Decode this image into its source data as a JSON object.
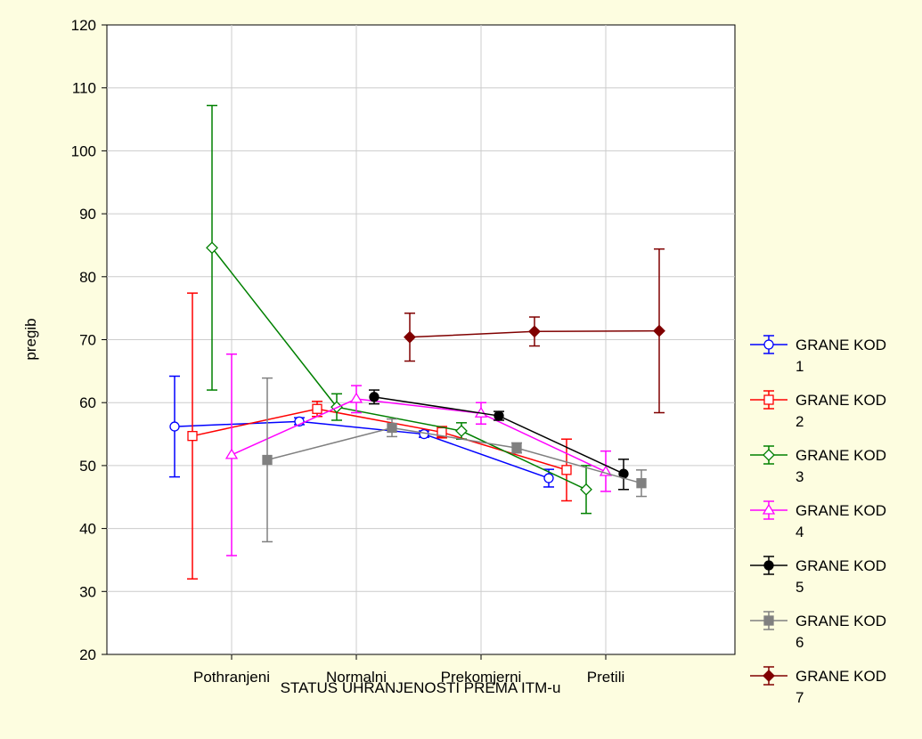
{
  "chart_data": {
    "type": "line",
    "title": "",
    "xlabel": "STATUS UHRANJENOSTI PREMA ITM-u",
    "ylabel": "pregib",
    "ylim": [
      20,
      120
    ],
    "yticks": [
      20,
      30,
      40,
      50,
      60,
      70,
      80,
      90,
      100,
      110,
      120
    ],
    "categories": [
      "Pothranjeni",
      "Normalni",
      "Prekomjerni",
      "Pretili"
    ],
    "grid": true,
    "legend_position": "right",
    "series": [
      {
        "name_line1": "GRANE KOD",
        "name_line2": "1",
        "color": "#0000ff",
        "marker": "circle-open",
        "values": [
          56.2,
          57.0,
          55.0,
          48.0
        ],
        "lower": [
          48.2,
          56.5,
          54.5,
          46.6
        ],
        "upper": [
          64.2,
          57.6,
          55.5,
          49.4
        ]
      },
      {
        "name_line1": "GRANE KOD",
        "name_line2": "2",
        "color": "#ff0000",
        "marker": "square-open",
        "values": [
          54.7,
          59.0,
          55.3,
          49.3
        ],
        "lower": [
          32.0,
          57.8,
          54.4,
          44.4
        ],
        "upper": [
          77.4,
          60.2,
          56.2,
          54.2
        ]
      },
      {
        "name_line1": "GRANE KOD",
        "name_line2": "3",
        "color": "#008000",
        "marker": "diamond-open",
        "values": [
          84.6,
          59.3,
          55.5,
          46.2
        ],
        "lower": [
          62.0,
          57.2,
          54.2,
          42.4
        ],
        "upper": [
          107.2,
          61.4,
          56.8,
          50.0
        ]
      },
      {
        "name_line1": "GRANE KOD",
        "name_line2": "4",
        "color": "#ff00ff",
        "marker": "triangle-open",
        "values": [
          51.7,
          60.6,
          58.3,
          49.0
        ],
        "lower": [
          35.7,
          58.4,
          56.6,
          45.9
        ],
        "upper": [
          67.7,
          62.7,
          60.0,
          52.3
        ]
      },
      {
        "name_line1": "GRANE KOD",
        "name_line2": "5",
        "color": "#000000",
        "marker": "circle-filled",
        "values": [
          null,
          60.9,
          57.9,
          48.7
        ],
        "lower": [
          null,
          59.8,
          57.2,
          46.2
        ],
        "upper": [
          null,
          62.0,
          58.6,
          51.0
        ]
      },
      {
        "name_line1": "GRANE KOD",
        "name_line2": "6",
        "color": "#808080",
        "marker": "square-filled",
        "values": [
          50.9,
          56.0,
          52.8,
          47.2
        ],
        "lower": [
          37.9,
          54.6,
          52.0,
          45.1
        ],
        "upper": [
          63.9,
          57.4,
          53.6,
          49.3
        ]
      },
      {
        "name_line1": "GRANE KOD",
        "name_line2": "7",
        "color": "#800000",
        "marker": "diamond-filled",
        "values": [
          null,
          70.4,
          71.3,
          71.4
        ],
        "lower": [
          null,
          66.6,
          69.0,
          58.4
        ],
        "upper": [
          null,
          74.2,
          73.6,
          84.4
        ]
      }
    ]
  }
}
